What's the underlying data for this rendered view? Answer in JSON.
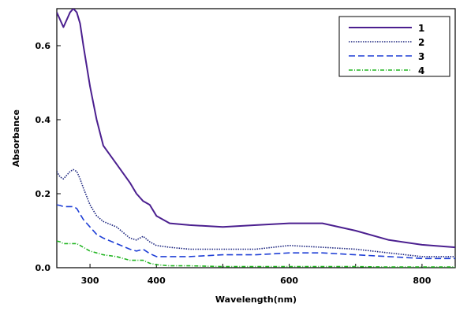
{
  "chart_data": {
    "type": "line",
    "title": "",
    "xlabel": "Wavelength(nm)",
    "ylabel": "Absorbance",
    "xlim": [
      250,
      850
    ],
    "ylim": [
      0,
      0.7
    ],
    "xticks": [
      300,
      400,
      500,
      600,
      700,
      800
    ],
    "xtick_labels": [
      "300",
      "400",
      "",
      "600",
      "",
      "800"
    ],
    "yticks": [
      0.0,
      0.2,
      0.4,
      0.6
    ],
    "ytick_labels": [
      "0.0",
      "0.2",
      "0.4",
      "0.6"
    ],
    "legend_position": "top-right",
    "grid": false,
    "series": [
      {
        "name": "1",
        "color": "#4b1f8f",
        "dash": "",
        "x": [
          250,
          255,
          260,
          265,
          270,
          275,
          280,
          285,
          290,
          300,
          310,
          320,
          340,
          360,
          370,
          380,
          390,
          400,
          420,
          450,
          500,
          550,
          600,
          650,
          700,
          750,
          800,
          850
        ],
        "y": [
          0.69,
          0.67,
          0.65,
          0.67,
          0.69,
          0.7,
          0.69,
          0.66,
          0.6,
          0.49,
          0.4,
          0.33,
          0.28,
          0.23,
          0.2,
          0.18,
          0.17,
          0.14,
          0.12,
          0.115,
          0.11,
          0.115,
          0.12,
          0.12,
          0.1,
          0.075,
          0.062,
          0.055
        ]
      },
      {
        "name": "2",
        "color": "#1a237e",
        "dash": "1.5,1.5",
        "x": [
          250,
          255,
          260,
          265,
          270,
          275,
          280,
          285,
          290,
          300,
          310,
          320,
          340,
          360,
          370,
          380,
          390,
          400,
          420,
          450,
          500,
          550,
          600,
          650,
          700,
          750,
          800,
          850
        ],
        "y": [
          0.26,
          0.245,
          0.24,
          0.25,
          0.26,
          0.265,
          0.26,
          0.24,
          0.215,
          0.17,
          0.14,
          0.125,
          0.11,
          0.08,
          0.075,
          0.085,
          0.07,
          0.06,
          0.055,
          0.05,
          0.05,
          0.05,
          0.06,
          0.055,
          0.05,
          0.04,
          0.03,
          0.03
        ]
      },
      {
        "name": "3",
        "color": "#1f3fd6",
        "dash": "8,4",
        "x": [
          250,
          255,
          260,
          265,
          270,
          275,
          280,
          285,
          290,
          300,
          310,
          320,
          340,
          360,
          370,
          380,
          390,
          400,
          420,
          450,
          500,
          550,
          600,
          650,
          700,
          750,
          800,
          850
        ],
        "y": [
          0.17,
          0.168,
          0.165,
          0.165,
          0.165,
          0.165,
          0.16,
          0.145,
          0.13,
          0.11,
          0.09,
          0.08,
          0.065,
          0.05,
          0.045,
          0.05,
          0.038,
          0.03,
          0.03,
          0.03,
          0.035,
          0.035,
          0.04,
          0.04,
          0.035,
          0.03,
          0.025,
          0.025
        ]
      },
      {
        "name": "4",
        "color": "#22b522",
        "dash": "5,2,1,2",
        "x": [
          250,
          255,
          260,
          270,
          280,
          290,
          300,
          310,
          320,
          340,
          360,
          370,
          380,
          390,
          400,
          420,
          450,
          500,
          550,
          600,
          650,
          700,
          750,
          800,
          850
        ],
        "y": [
          0.072,
          0.07,
          0.065,
          0.065,
          0.065,
          0.055,
          0.045,
          0.04,
          0.035,
          0.03,
          0.02,
          0.02,
          0.02,
          0.012,
          0.008,
          0.005,
          0.005,
          0.003,
          0.003,
          0.003,
          0.003,
          0.003,
          0.002,
          0.002,
          0.002
        ]
      }
    ]
  }
}
